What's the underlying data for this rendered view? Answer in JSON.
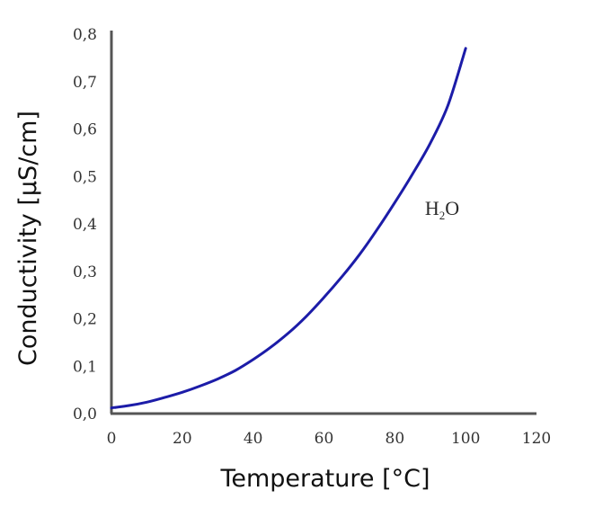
{
  "chart_data": {
    "type": "line",
    "title": "",
    "xlabel": "Temperature [°C]",
    "ylabel": "Conductivity [µS/cm]",
    "xlim": [
      0,
      120
    ],
    "ylim": [
      0,
      0.8
    ],
    "xticks": [
      0,
      20,
      40,
      60,
      80,
      100,
      120
    ],
    "yticks": [
      0.0,
      0.1,
      0.2,
      0.3,
      0.4,
      0.5,
      0.6,
      0.7,
      0.8
    ],
    "xtick_labels": [
      "0",
      "20",
      "40",
      "60",
      "80",
      "100",
      "120"
    ],
    "ytick_labels": [
      "0,0",
      "0,1",
      "0,2",
      "0,3",
      "0,4",
      "0,5",
      "0,6",
      "0,7",
      "0,8"
    ],
    "grid": false,
    "series": [
      {
        "name": "",
        "color": "#1c1ca8",
        "x": [
          0,
          5,
          10,
          15,
          20,
          25,
          30,
          35,
          40,
          45,
          50,
          55,
          60,
          65,
          70,
          75,
          80,
          85,
          90,
          95,
          100
        ],
        "y": [
          0.012,
          0.017,
          0.024,
          0.034,
          0.045,
          0.058,
          0.073,
          0.091,
          0.114,
          0.14,
          0.17,
          0.205,
          0.245,
          0.288,
          0.335,
          0.388,
          0.445,
          0.505,
          0.57,
          0.65,
          0.77
        ]
      }
    ],
    "annotations": [
      {
        "text": "H",
        "subscript": "2",
        "text_after": "O",
        "x": 88,
        "y": 0.43
      }
    ]
  }
}
